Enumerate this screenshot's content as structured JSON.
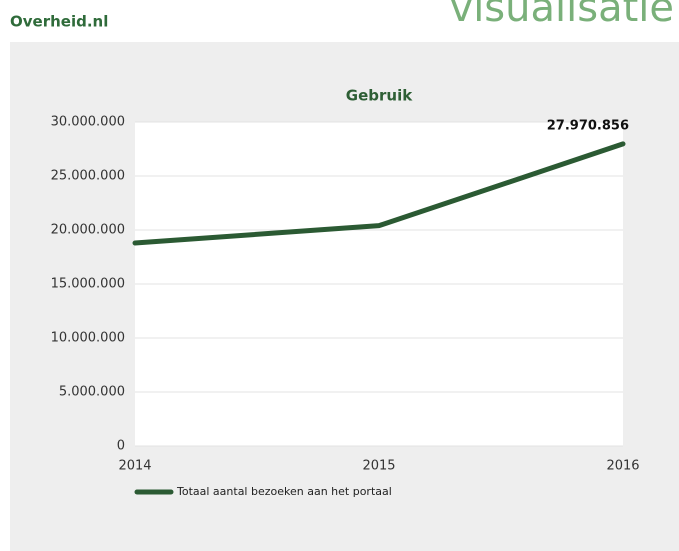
{
  "header": {
    "site": "Overheid.nl",
    "section": "visualisatie"
  },
  "chart_data": {
    "type": "line",
    "title": "Gebruik",
    "categories": [
      "2014",
      "2015",
      "2016"
    ],
    "series": [
      {
        "name": "Totaal aantal bezoeken aan het portaal",
        "color": "#2b5a33",
        "values": [
          18800000,
          20400000,
          27970856
        ],
        "value_labels": [
          null,
          null,
          "27.970.856"
        ]
      }
    ],
    "ylim": [
      0,
      30000000
    ],
    "yticks": [
      0,
      {
        "value": 5000000,
        "label": "5.000.000"
      },
      {
        "value": 10000000,
        "label": "10.000.000"
      },
      {
        "value": 15000000,
        "label": "15.000.000"
      },
      {
        "value": 20000000,
        "label": "20.000.000"
      },
      {
        "value": 25000000,
        "label": "25.000.000"
      },
      {
        "value": 30000000,
        "label": "30.000.000"
      }
    ],
    "grid": true,
    "legend": "bottom-left"
  }
}
